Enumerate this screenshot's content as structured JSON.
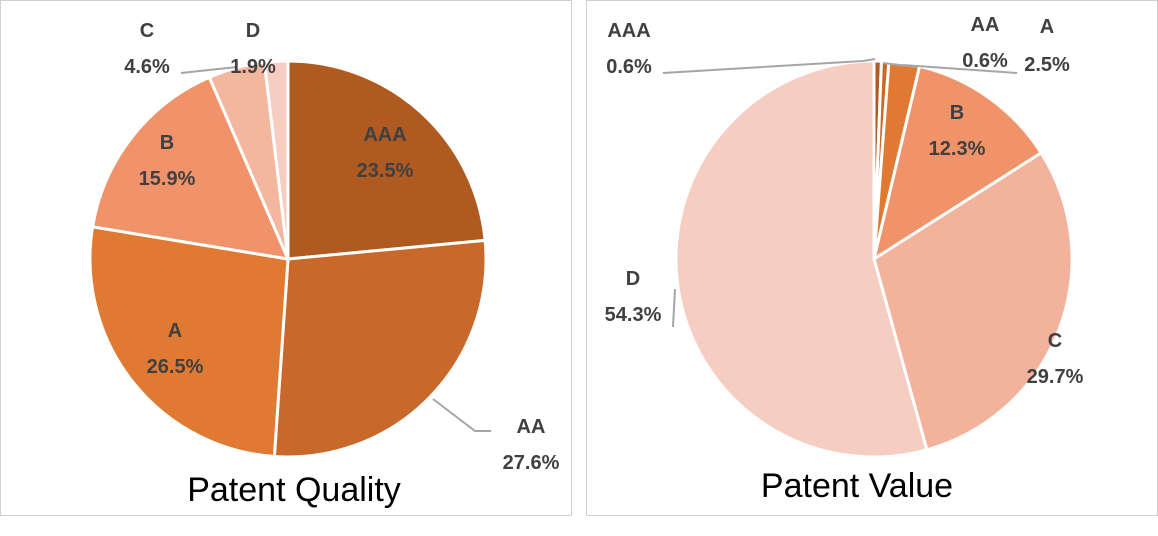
{
  "chart_data": [
    {
      "type": "pie",
      "title": "Patent Quality",
      "categories": [
        "AAA",
        "AA",
        "A",
        "B",
        "C",
        "D"
      ],
      "values": [
        23.5,
        27.6,
        26.5,
        15.9,
        4.6,
        1.9
      ],
      "value_labels": [
        "23.5%",
        "27.6%",
        "26.5%",
        "15.9%",
        "4.6%",
        "1.9%"
      ],
      "colors": [
        "#AE5A21",
        "#C8692B",
        "#E07A32",
        "#F0936A",
        "#F3B69E",
        "#F6CDC1"
      ],
      "legend": "none",
      "start_angle": "12 o'clock, clockwise"
    },
    {
      "type": "pie",
      "title": "Patent Value",
      "categories": [
        "AAA",
        "AA",
        "A",
        "B",
        "C",
        "D"
      ],
      "values": [
        0.6,
        0.6,
        2.5,
        12.3,
        29.7,
        54.3
      ],
      "value_labels": [
        "0.6%",
        "0.6%",
        "2.5%",
        "12.3%",
        "29.7%",
        "54.3%"
      ],
      "colors": [
        "#AE5A21",
        "#C8692B",
        "#E07A32",
        "#F0936A",
        "#F3B29B",
        "#F6CDC1"
      ],
      "legend": "none",
      "start_angle": "12 o'clock, clockwise"
    }
  ]
}
